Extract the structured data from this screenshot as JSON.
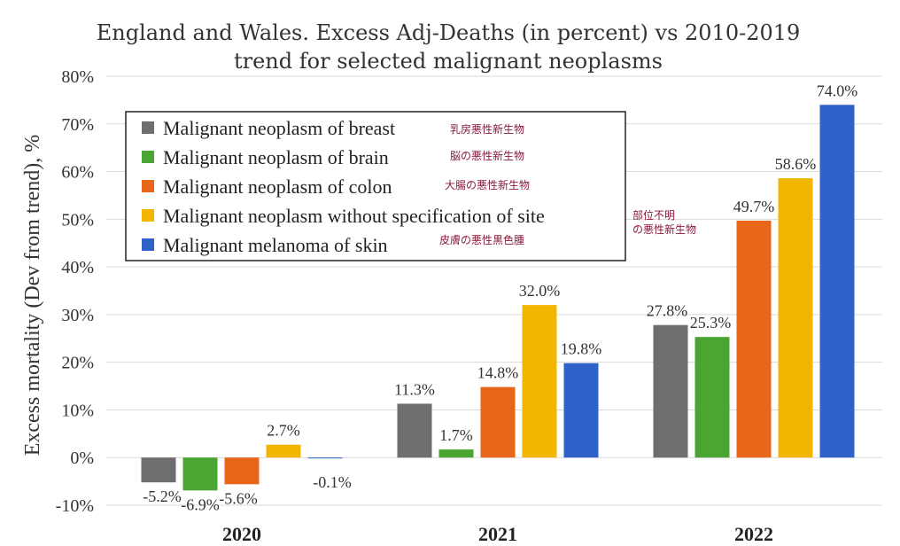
{
  "chart_data": {
    "type": "bar",
    "title": [
      "England and Wales. Excess Adj-Deaths (in percent) vs 2010-2019",
      "trend for selected malignant neoplasms"
    ],
    "ylabel": "Excess mortality (Dev from trend), %",
    "xlabel": "",
    "ylim": [
      -10,
      80
    ],
    "yticks": [
      80,
      70,
      60,
      50,
      40,
      30,
      20,
      10,
      0,
      -10
    ],
    "ytick_labels": [
      "80%",
      "70%",
      "60%",
      "50%",
      "40%",
      "30%",
      "20%",
      "10%",
      "0%",
      "-10%"
    ],
    "grid": true,
    "categories": [
      "2020",
      "2021",
      "2022"
    ],
    "series": [
      {
        "name": "Malignant neoplasm of breast",
        "note": "乳房悪性新生物",
        "color": "#6e6e6e",
        "values": [
          -5.2,
          11.3,
          27.8
        ],
        "labels": [
          "-5.2%",
          "11.3%",
          "27.8%"
        ]
      },
      {
        "name": "Malignant neoplasm of brain",
        "note": "脳の悪性新生物",
        "color": "#4aa532",
        "values": [
          -6.9,
          1.7,
          25.3
        ],
        "labels": [
          "-6.9%",
          "1.7%",
          "25.3%"
        ]
      },
      {
        "name": "Malignant neoplasm of colon",
        "note": "大腸の悪性新生物",
        "color": "#e8661a",
        "values": [
          -5.6,
          14.8,
          49.7
        ],
        "labels": [
          "-5.6%",
          "14.8%",
          "49.7%"
        ]
      },
      {
        "name": "Malignant neoplasm without specification of site",
        "note": "部位不明\nの悪性新生物",
        "color": "#f2b500",
        "values": [
          2.7,
          32.0,
          58.6
        ],
        "labels": [
          "2.7%",
          "32.0%",
          "58.6%"
        ]
      },
      {
        "name": "Malignant melanoma of skin",
        "note": "皮膚の悪性黒色腫",
        "color": "#2e62c8",
        "values": [
          -0.1,
          19.8,
          74.0
        ],
        "labels": [
          "-0.1%",
          "19.8%",
          "74.0%"
        ]
      }
    ],
    "legend_position": "top-left"
  }
}
